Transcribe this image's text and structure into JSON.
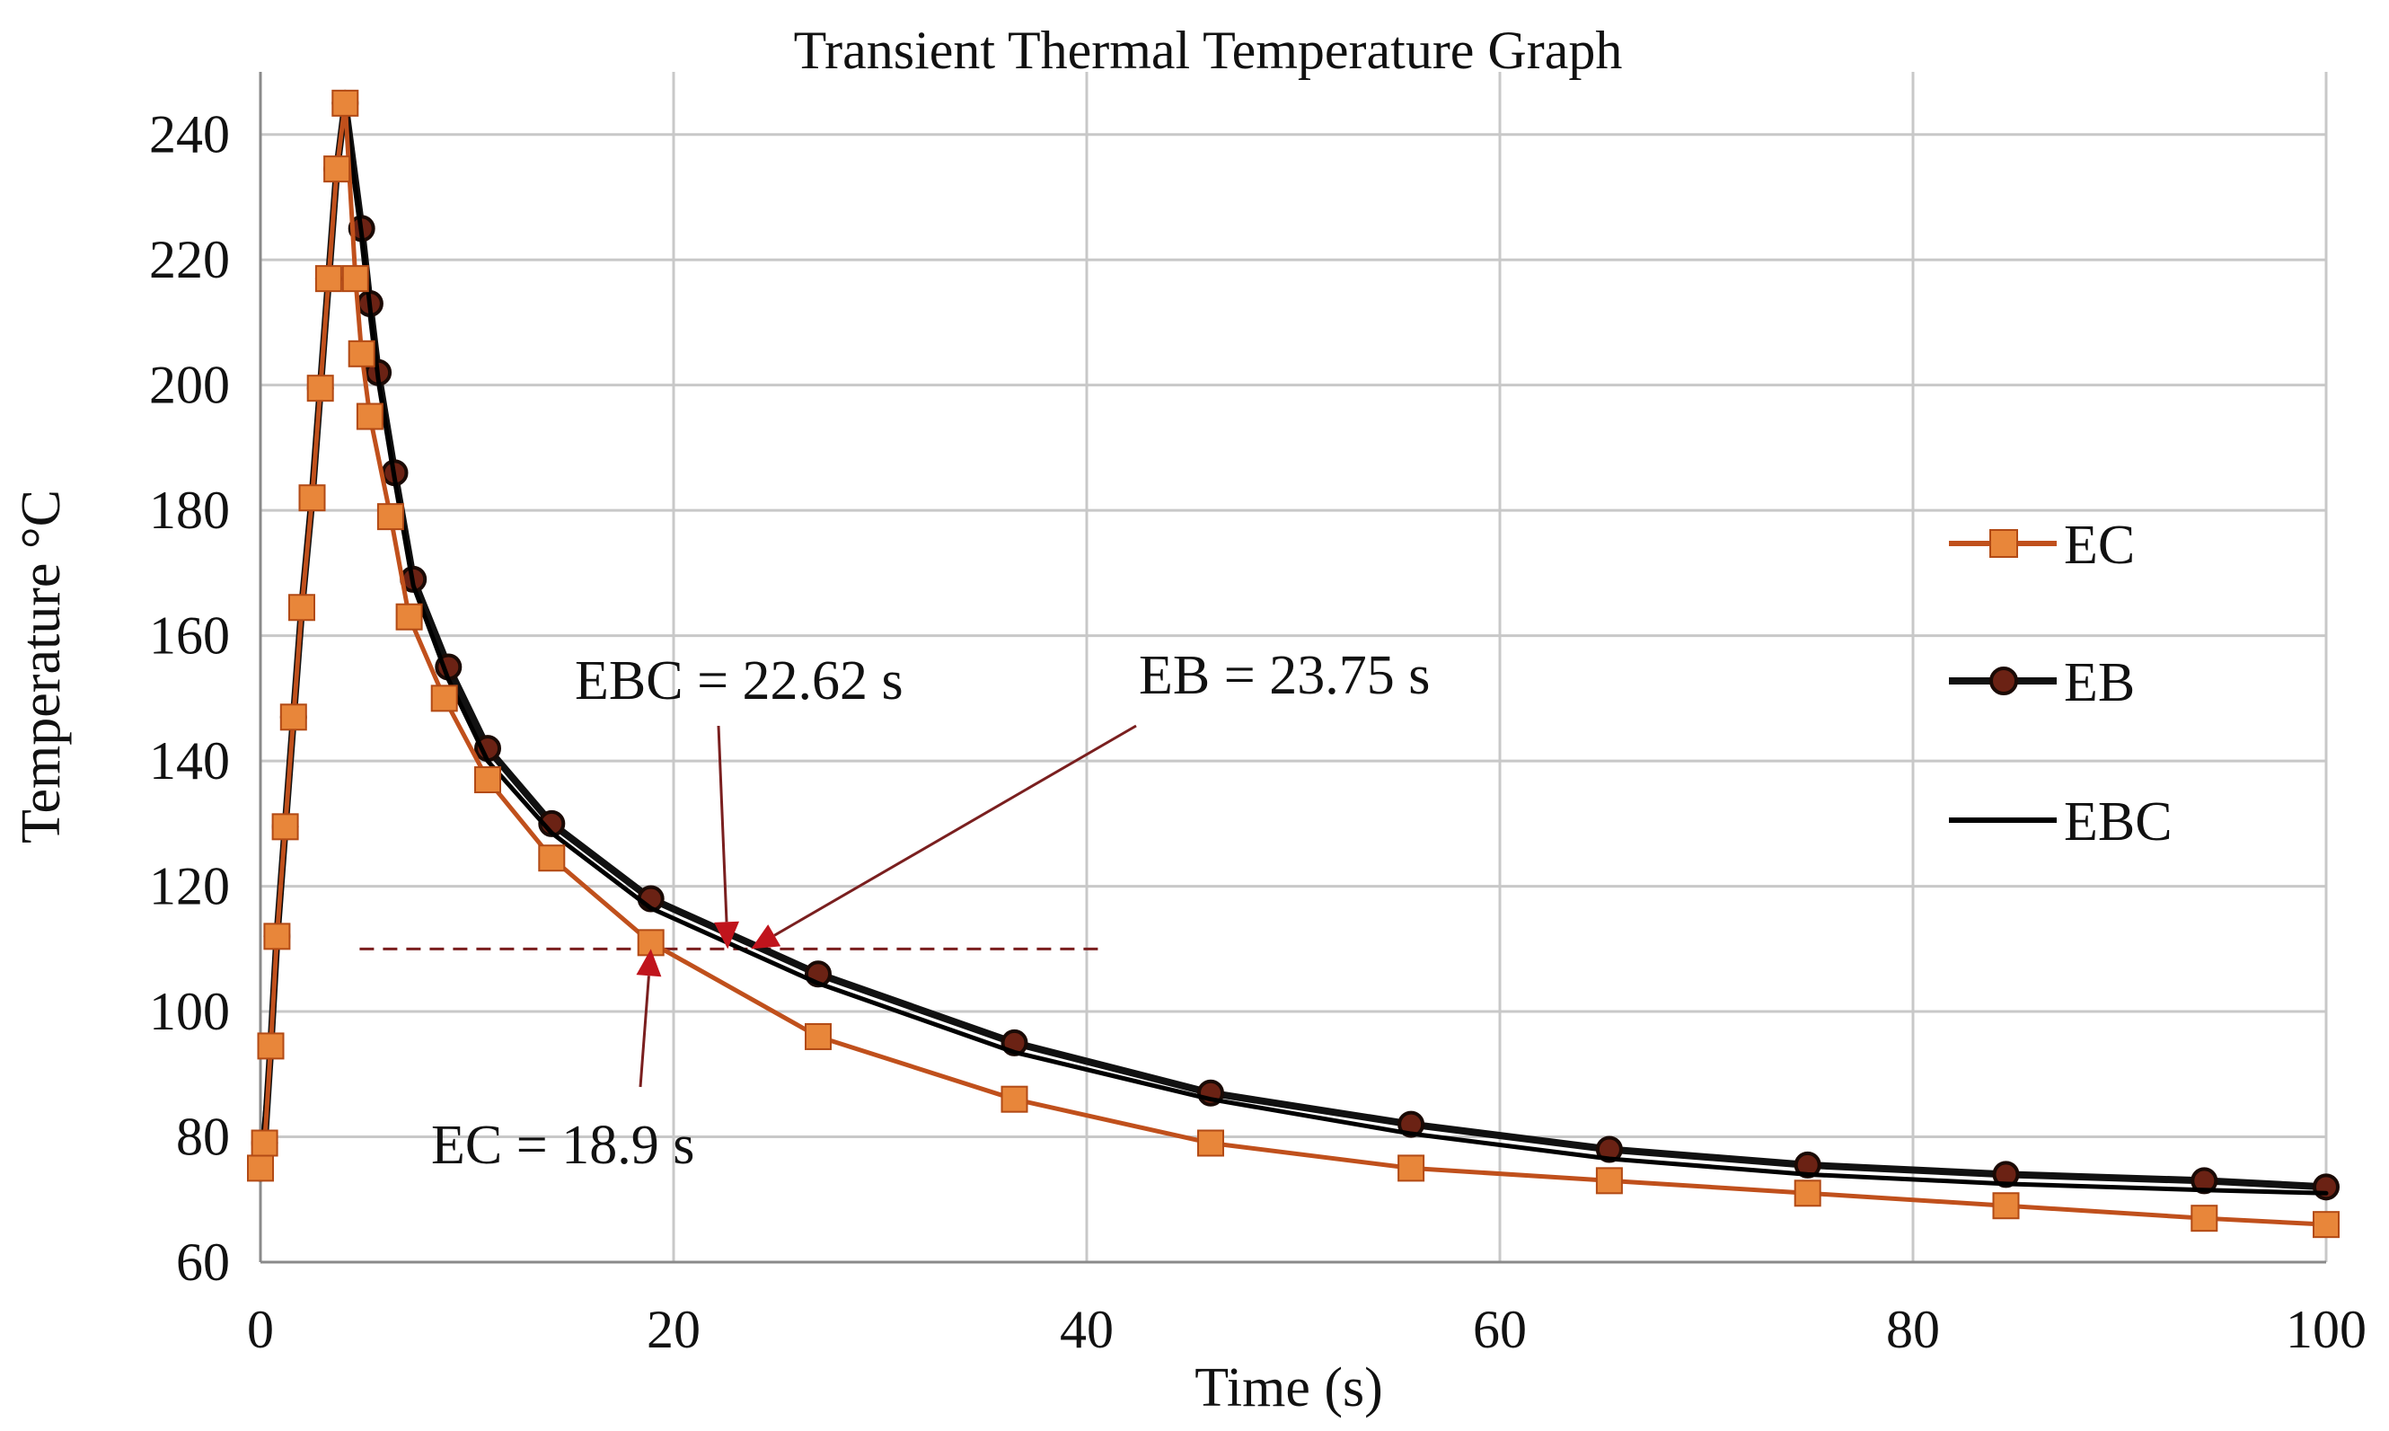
{
  "chart_data": {
    "type": "line",
    "title": "Transient Thermal Temperature Graph",
    "xlabel": "Time (s)",
    "ylabel": "Temperature °C",
    "xlim": [
      0,
      100
    ],
    "ylim": [
      60,
      250
    ],
    "xticks": [
      0,
      20,
      40,
      60,
      80,
      100
    ],
    "yticks": [
      60,
      80,
      100,
      120,
      140,
      160,
      180,
      200,
      220,
      240
    ],
    "grid": true,
    "legend_position": "right",
    "series": [
      {
        "name": "EC",
        "color": "#C0501C",
        "marker": "square",
        "marker_color": "#E8863A",
        "x": [
          0,
          0.2,
          0.5,
          0.8,
          1.2,
          1.6,
          2.0,
          2.5,
          2.9,
          3.3,
          3.7,
          4.1,
          4.6,
          4.9,
          5.3,
          6.3,
          7.2,
          8.9,
          11.0,
          14.1,
          18.9,
          27.0,
          36.5,
          46.0,
          55.7,
          65.3,
          74.9,
          84.5,
          94.1,
          100
        ],
        "y": [
          75,
          79,
          94.5,
          112,
          129.5,
          147,
          164.5,
          182,
          199.5,
          217,
          234.5,
          245,
          217,
          205,
          195,
          179,
          163,
          150,
          137,
          124.5,
          111,
          96,
          86,
          79,
          75,
          73,
          71,
          69,
          67,
          66
        ]
      },
      {
        "name": "EB",
        "color": "#111111",
        "marker": "circle",
        "marker_color": "#6B2214",
        "x": [
          0,
          0.2,
          0.5,
          0.8,
          1.2,
          1.6,
          2.0,
          2.5,
          2.9,
          3.3,
          3.7,
          4.1,
          4.9,
          5.3,
          5.7,
          6.5,
          7.4,
          9.1,
          11.0,
          14.1,
          18.9,
          27.0,
          36.5,
          46.0,
          55.7,
          65.3,
          74.9,
          84.5,
          94.1,
          100
        ],
        "y": [
          75,
          79,
          94.5,
          112,
          129.5,
          147,
          164.5,
          182,
          199.5,
          217,
          234.5,
          245,
          225,
          213,
          202,
          186,
          169,
          155,
          142,
          130,
          118,
          106,
          95,
          87,
          82,
          78,
          75.5,
          74,
          73,
          72
        ]
      },
      {
        "name": "EBC",
        "color": "#000000",
        "marker": "none",
        "x": [
          0,
          0.5,
          1.2,
          2.0,
          2.9,
          3.7,
          4.1,
          4.9,
          5.7,
          6.5,
          7.4,
          9.1,
          11.0,
          14.1,
          18.9,
          27.0,
          36.5,
          46.0,
          55.7,
          65.3,
          74.9,
          84.5,
          94.1,
          100
        ],
        "y": [
          75,
          94.5,
          129.5,
          164.5,
          199.5,
          234.5,
          244,
          224,
          201,
          185,
          168,
          153,
          140,
          128.5,
          116.5,
          104.5,
          93.5,
          86,
          80.5,
          76.5,
          74,
          72.5,
          71.5,
          71
        ]
      }
    ],
    "reference_line": {
      "y": 110,
      "x_start": 4.8,
      "x_end": 40.7,
      "style": "dashed",
      "color": "#7A1F1F"
    },
    "annotations": [
      {
        "text": "EBC = 22.62 s",
        "point": [
          22.62,
          110
        ]
      },
      {
        "text": "EB = 23.75 s",
        "point": [
          23.75,
          110
        ]
      },
      {
        "text": "EC = 18.9 s",
        "point": [
          18.9,
          110
        ]
      }
    ]
  }
}
